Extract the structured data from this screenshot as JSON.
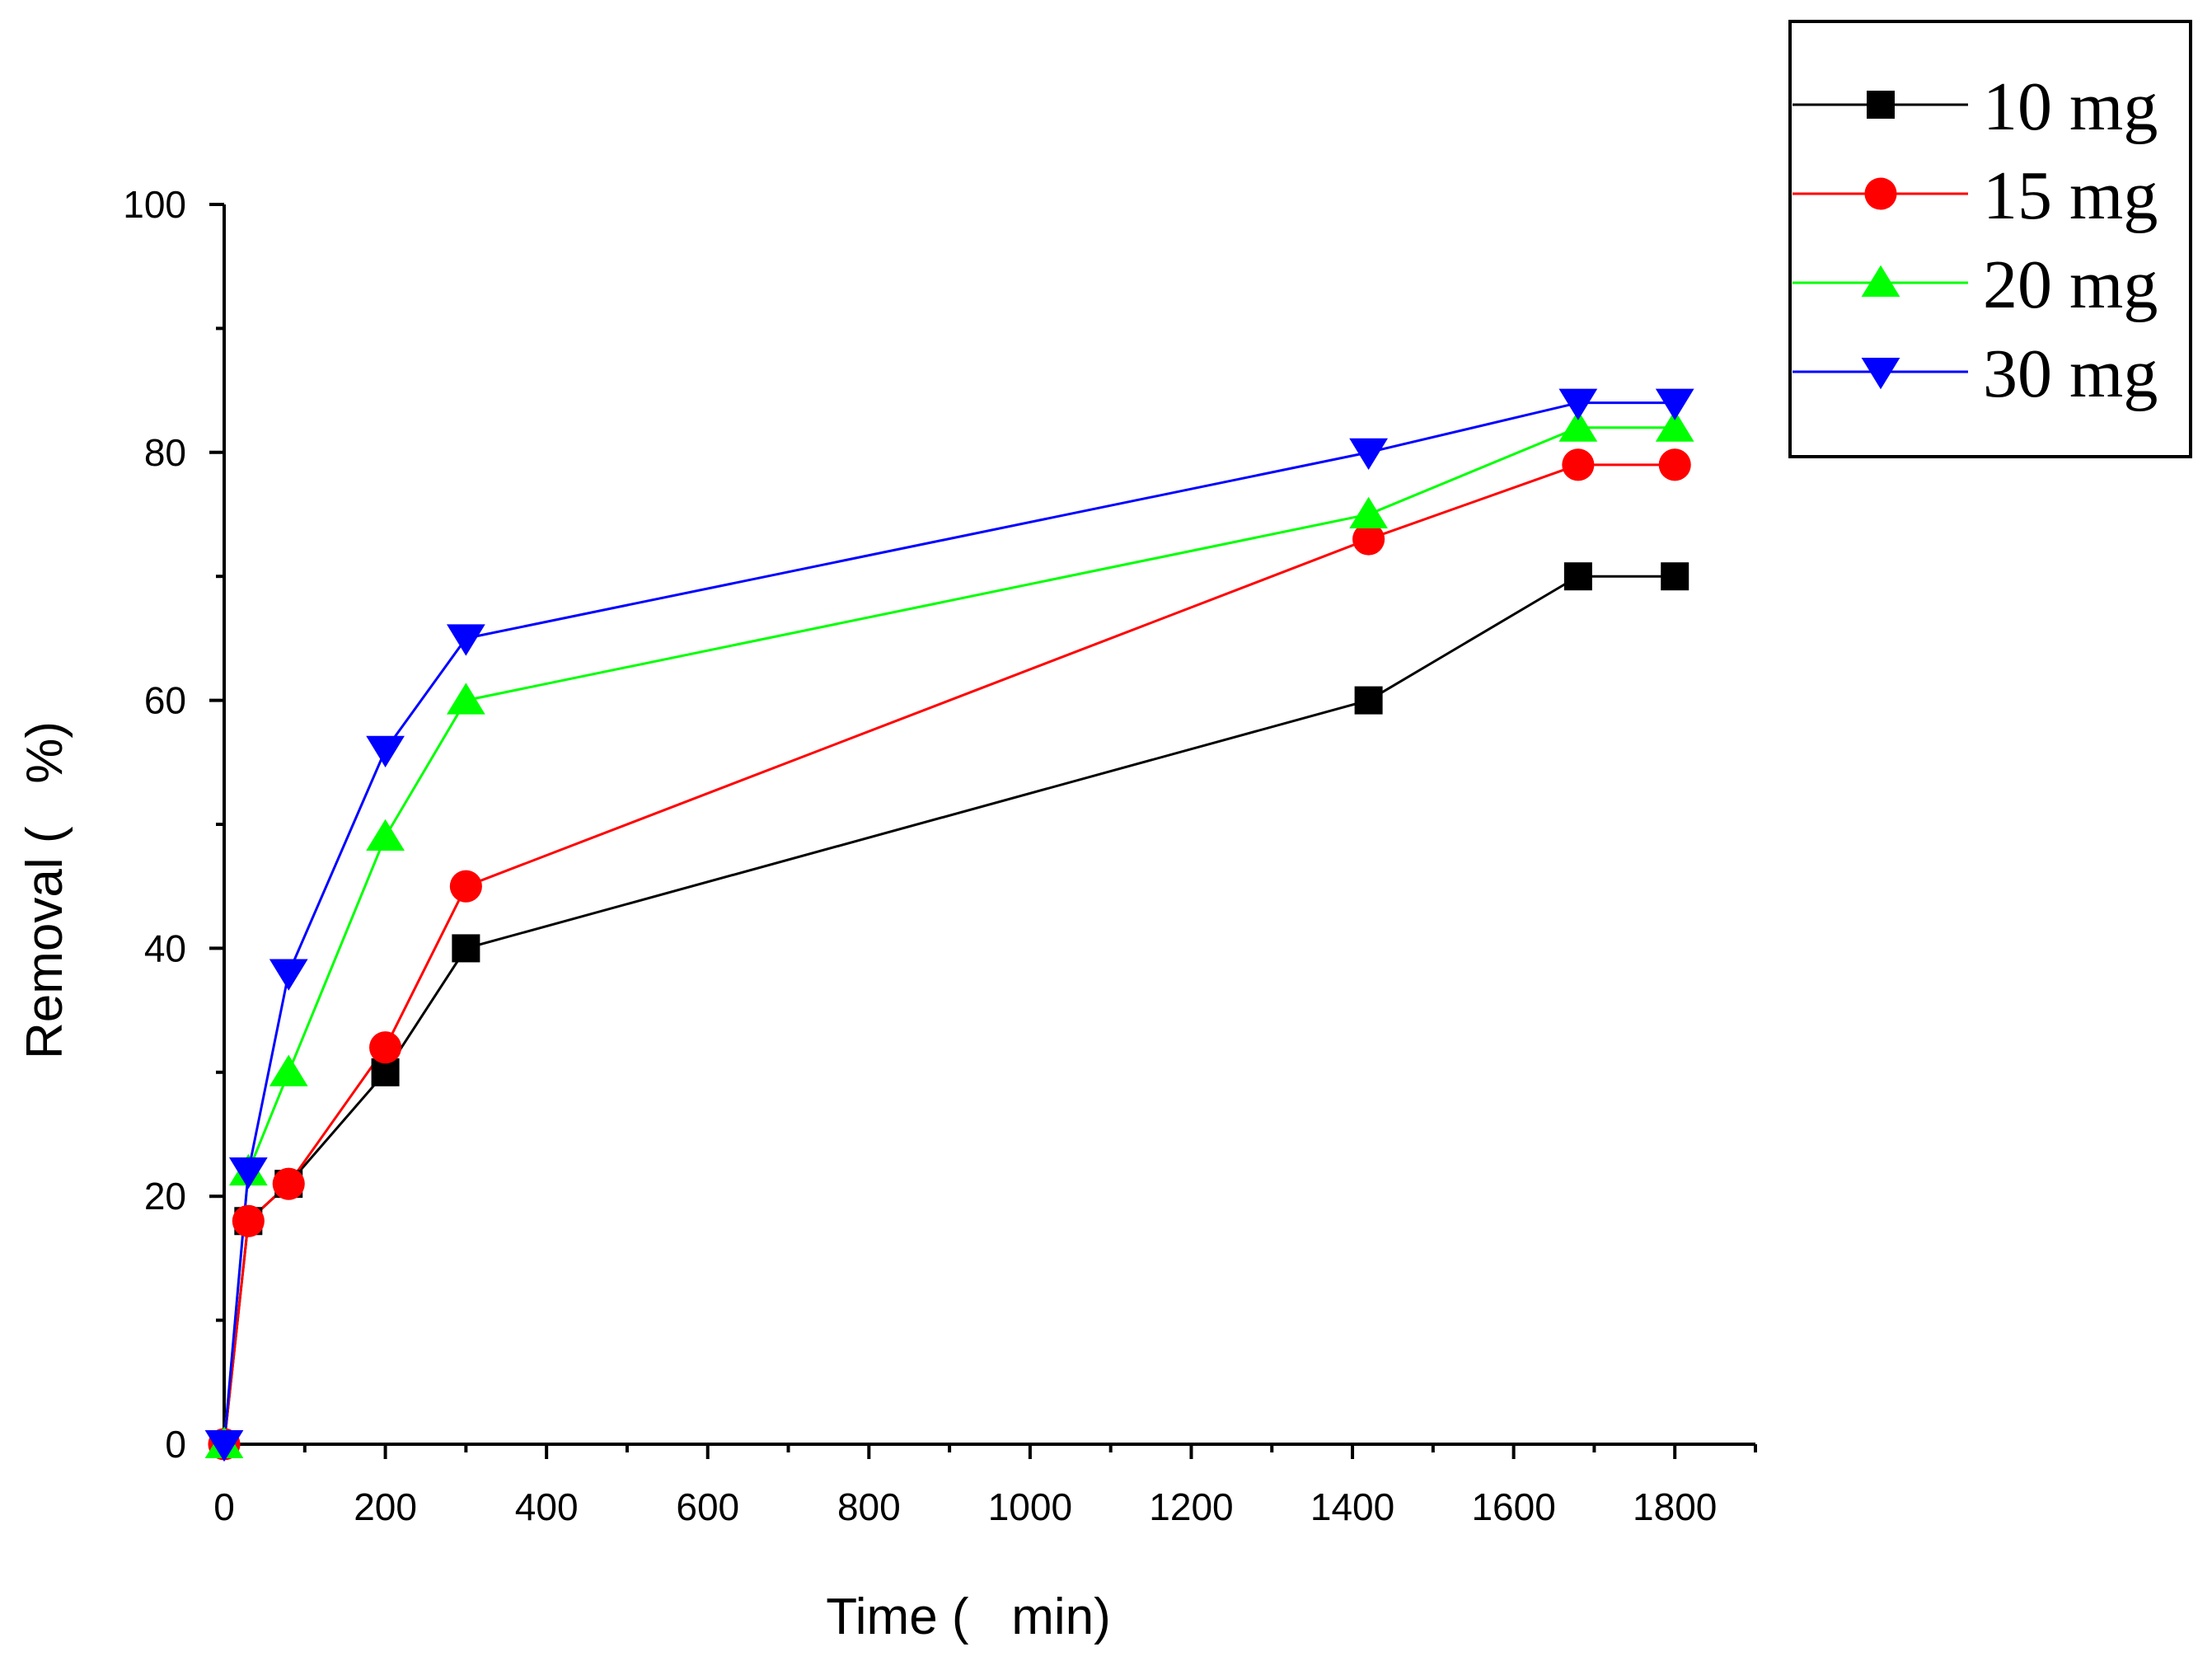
{
  "chart_data": {
    "type": "line",
    "title": "",
    "xlabel": "Time (   min)",
    "ylabel": "Removal (   %)",
    "xlim": [
      0,
      1900
    ],
    "ylim": [
      0,
      100
    ],
    "x_ticks": [
      0,
      200,
      400,
      600,
      800,
      1000,
      1200,
      1400,
      1600,
      1800
    ],
    "y_ticks": [
      0,
      20,
      40,
      60,
      80,
      100
    ],
    "legend_position": "top-right",
    "x": [
      0,
      30,
      80,
      200,
      300,
      1420,
      1680,
      1800
    ],
    "series": [
      {
        "name": "10 mg",
        "color": "#000000",
        "marker": "square",
        "values": [
          0,
          18,
          21,
          30,
          40,
          60,
          70,
          70
        ]
      },
      {
        "name": "15 mg",
        "color": "#ff0000",
        "marker": "circle",
        "values": [
          0,
          18,
          21,
          32,
          45,
          73,
          79,
          79
        ]
      },
      {
        "name": "20 mg",
        "color": "#00ff00",
        "marker": "triangle-up",
        "values": [
          0,
          22,
          30,
          49,
          60,
          75,
          82,
          82
        ]
      },
      {
        "name": "30 mg",
        "color": "#0000ff",
        "marker": "triangle-down",
        "values": [
          0,
          22,
          38,
          56,
          65,
          80,
          84,
          84
        ]
      }
    ]
  }
}
